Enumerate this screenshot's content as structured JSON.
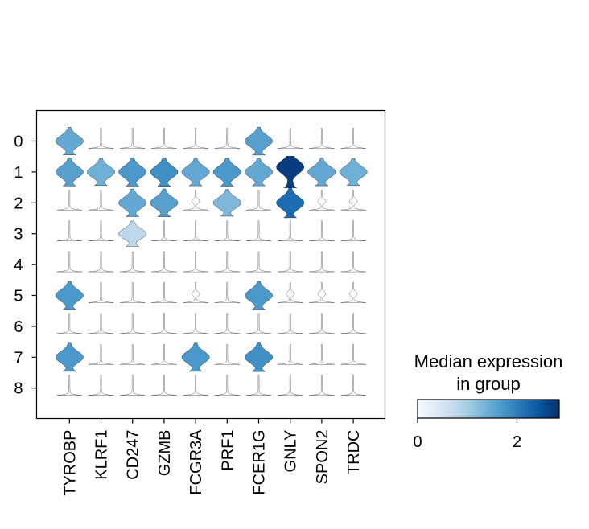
{
  "chart_data": {
    "type": "stacked-violin",
    "groups": [
      "0",
      "1",
      "2",
      "3",
      "4",
      "5",
      "6",
      "7",
      "8"
    ],
    "genes": [
      "TYROBP",
      "KLRF1",
      "CD247",
      "GZMB",
      "FCGR3A",
      "PRF1",
      "FCER1G",
      "GNLY",
      "SPON2",
      "TRDC"
    ],
    "median_expression": [
      [
        1.5,
        0.0,
        0.0,
        0.0,
        0.0,
        0.0,
        1.6,
        0.0,
        0.0,
        0.0
      ],
      [
        1.6,
        1.4,
        1.7,
        1.8,
        1.5,
        1.7,
        1.5,
        2.7,
        1.5,
        1.4
      ],
      [
        0.0,
        0.0,
        1.5,
        1.6,
        0.0,
        1.3,
        0.0,
        2.2,
        0.0,
        0.0
      ],
      [
        0.0,
        0.0,
        0.8,
        0.0,
        0.0,
        0.0,
        0.0,
        0.0,
        0.0,
        0.0
      ],
      [
        0.0,
        0.0,
        0.0,
        0.0,
        0.0,
        0.0,
        0.0,
        0.0,
        0.0,
        0.0
      ],
      [
        1.7,
        0.0,
        0.0,
        0.0,
        0.0,
        0.0,
        1.7,
        0.0,
        0.0,
        0.0
      ],
      [
        0.0,
        0.0,
        0.0,
        0.0,
        0.0,
        0.0,
        0.0,
        0.0,
        0.0,
        0.0
      ],
      [
        1.7,
        0.0,
        0.0,
        0.0,
        1.7,
        0.0,
        1.8,
        0.0,
        0.0,
        0.0
      ],
      [
        0.05,
        0.0,
        0.0,
        0.0,
        0.0,
        0.0,
        0.12,
        0.0,
        0.0,
        0.0
      ]
    ],
    "colorbar": {
      "title": "Median expression\nin group",
      "range": [
        0,
        2.85
      ],
      "ticks": [
        0,
        2
      ],
      "colormap": "Blues",
      "colors": [
        "#f7fbff",
        "#deebf7",
        "#c6dbef",
        "#9ecae1",
        "#6baed6",
        "#4292c6",
        "#2171b5",
        "#08519c",
        "#08306b"
      ]
    },
    "grid": false
  }
}
